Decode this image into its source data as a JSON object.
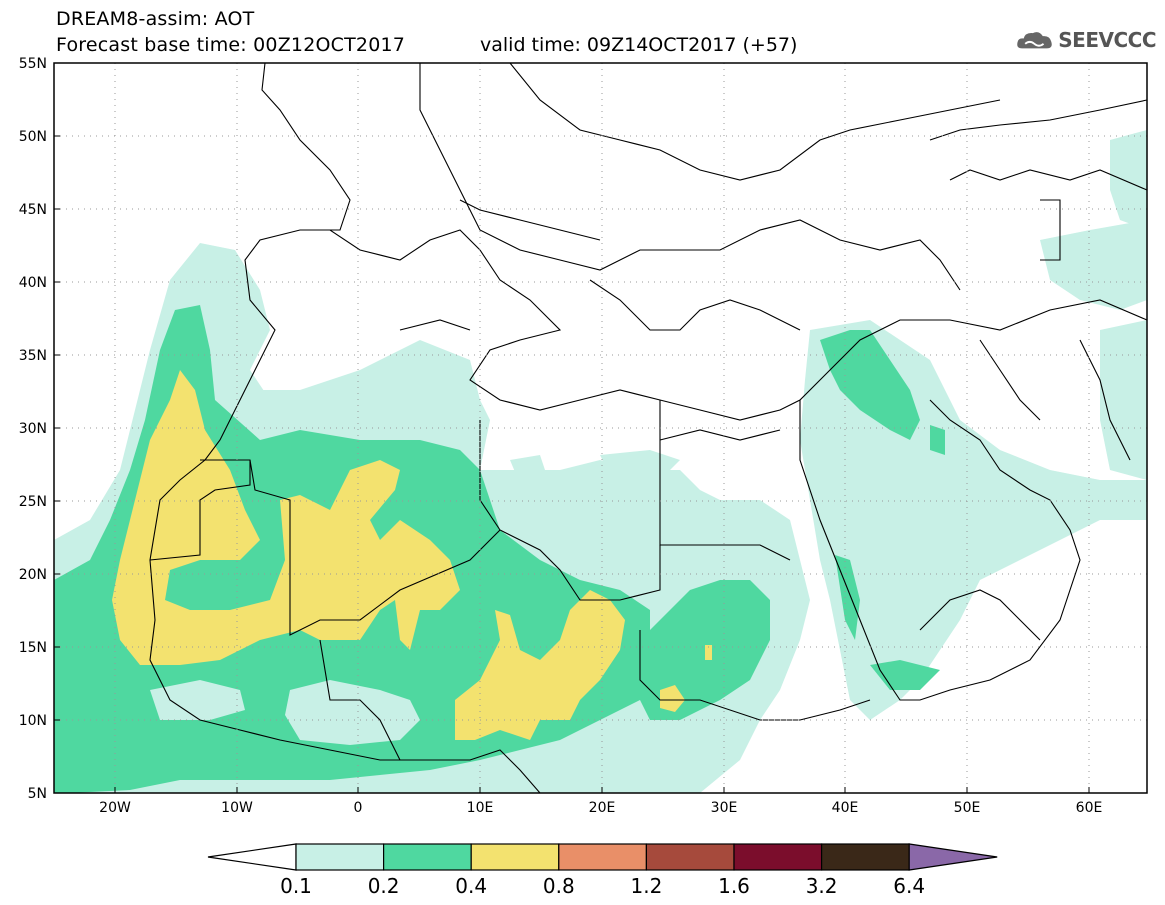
{
  "title_line1": "DREAM8-assim: AOT",
  "title_line2": "Forecast base time: 00Z12OCT2017",
  "valid_time": "valid time: 09Z14OCT2017 (+57)",
  "logo_text": "SEEVCCC",
  "logo_icon": "cloud-icon",
  "lat_labels": [
    "55N",
    "50N",
    "45N",
    "40N",
    "35N",
    "30N",
    "25N",
    "20N",
    "15N",
    "10N",
    "5N"
  ],
  "lon_labels": [
    "20W",
    "10W",
    "0",
    "10E",
    "20E",
    "30E",
    "40E",
    "50E",
    "60E"
  ],
  "colorbar": {
    "labels": [
      "0.1",
      "0.2",
      "0.4",
      "0.8",
      "1.2",
      "1.6",
      "3.2",
      "6.4"
    ],
    "colors": [
      "#c8f0e6",
      "#4fd8a0",
      "#f3e26f",
      "#e98f68",
      "#a64a3c",
      "#7b0d2c",
      "#3a2818",
      "#8a68a8"
    ],
    "under_color": "#ffffff",
    "over_color": "#8a68a8"
  }
}
